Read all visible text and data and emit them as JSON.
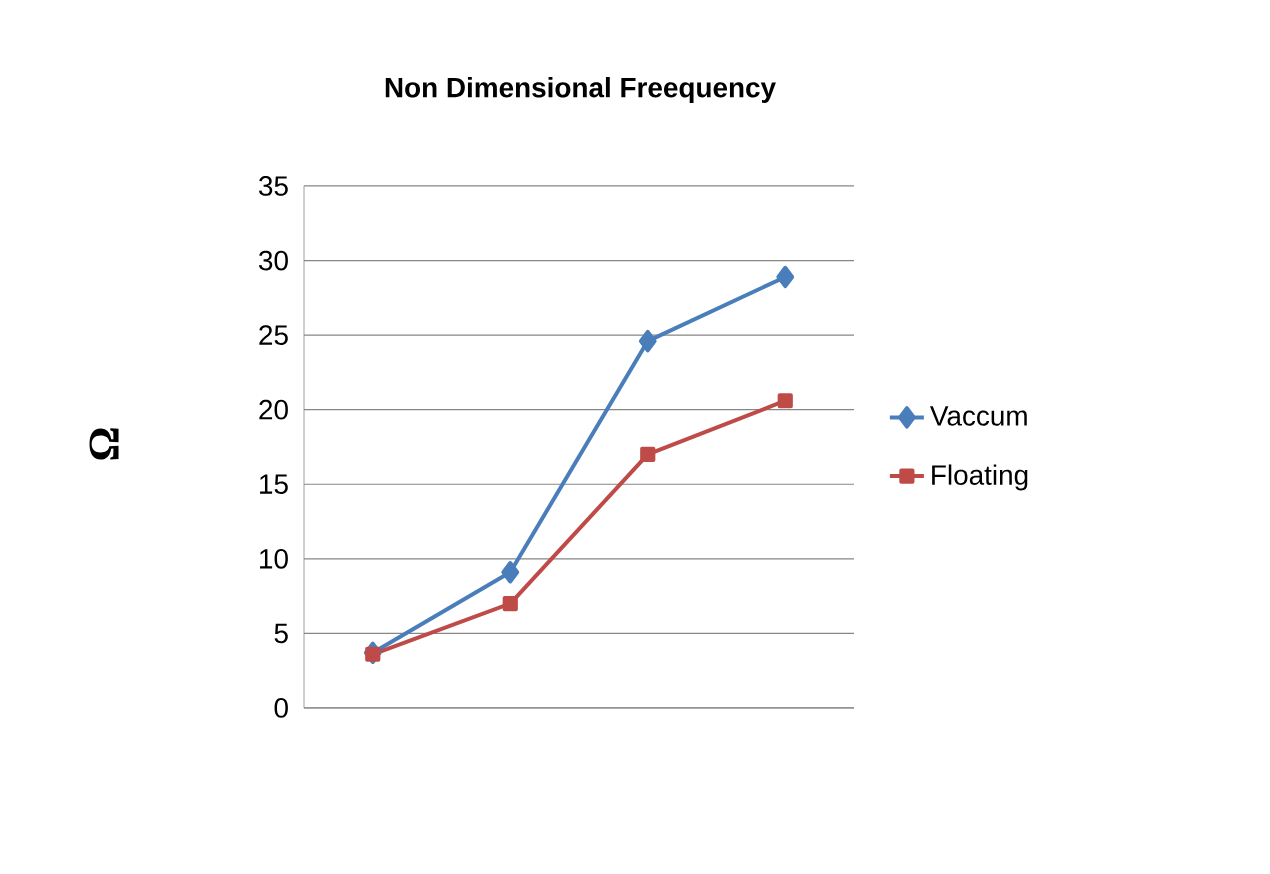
{
  "chart_data": {
    "type": "line",
    "title": "Non Dimensional Freequency",
    "ylabel": "Ω",
    "categories": [
      null,
      null,
      null,
      null
    ],
    "series": [
      {
        "name": "Vaccum",
        "color": "#4a7ebb",
        "marker": "diamond",
        "values": [
          3.7,
          9.1,
          24.6,
          28.9
        ]
      },
      {
        "name": "Floating",
        "color": "#be4b48",
        "marker": "square",
        "values": [
          3.6,
          7.0,
          17.0,
          20.6
        ]
      }
    ],
    "ylim": [
      0,
      35
    ],
    "yticks": [
      0,
      5,
      10,
      15,
      20,
      25,
      30,
      35
    ],
    "grid": "y",
    "legend": "right"
  }
}
